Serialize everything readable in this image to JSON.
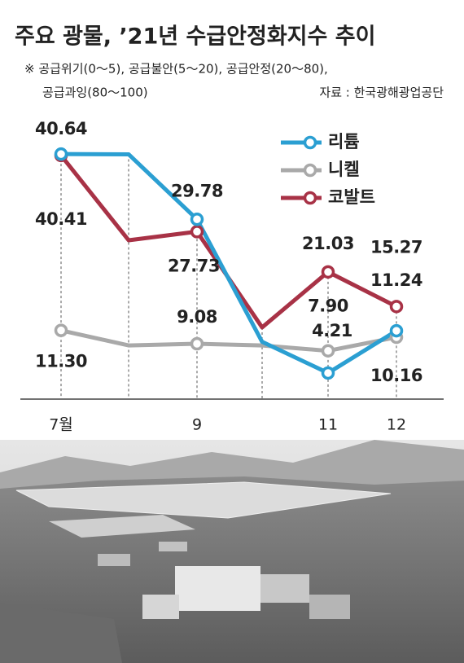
{
  "chart_data": {
    "type": "line",
    "title": "주요 광물, ’21년 수급안정화지수 추이",
    "notes": [
      "※  공급위기(0～5), 공급불안(5～20), 공급안정(20～80),",
      "공급과잉(80～100)"
    ],
    "source": "자료 : 한국광해광업공단",
    "categories": [
      "7월",
      null,
      "9",
      null,
      "11",
      "12"
    ],
    "ylim": [
      0,
      45
    ],
    "legend": "top-right",
    "series": [
      {
        "name": "리튬",
        "color": "#2b9fd2",
        "values": [
          40.64,
          40.6,
          29.78,
          9.4,
          4.21,
          11.24
        ],
        "value_labels": [
          "40.64",
          null,
          "29.78",
          null,
          "4.21",
          "11.24"
        ]
      },
      {
        "name": "니켈",
        "color": "#a9a9a9",
        "values": [
          11.3,
          8.8,
          9.08,
          8.8,
          7.9,
          10.16
        ],
        "value_labels": [
          "11.30",
          null,
          "9.08",
          null,
          "7.90",
          "10.16"
        ]
      },
      {
        "name": "코발트",
        "color": "#a83246",
        "values": [
          40.41,
          26.3,
          27.73,
          11.8,
          21.03,
          15.27
        ],
        "value_labels": [
          "40.41",
          null,
          "27.73",
          null,
          "21.03",
          "15.27"
        ]
      }
    ]
  }
}
